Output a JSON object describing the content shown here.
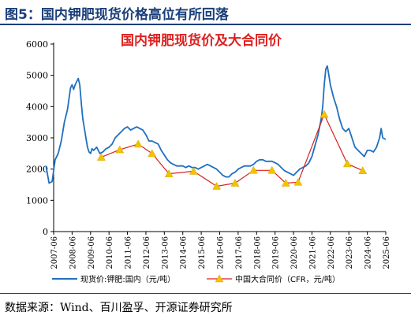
{
  "figure": {
    "title": "图5：国内钾肥现货价格高位有所回落",
    "source": "数据来源：Wind、百川盈孚、开源证券研究所"
  },
  "chart_data": {
    "type": "line",
    "title": "国内钾肥现货价及大合同价",
    "ylim": [
      0,
      6000
    ],
    "yticks": [
      0,
      1000,
      2000,
      3000,
      4000,
      5000,
      6000
    ],
    "xticks": [
      "2007-06",
      "2008-06",
      "2009-06",
      "2010-06",
      "2011-06",
      "2012-06",
      "2013-06",
      "2014-06",
      "2015-06",
      "2016-06",
      "2017-06",
      "2018-06",
      "2019-06",
      "2020-06",
      "2021-06",
      "2022-06",
      "2023-06",
      "2024-06",
      "2025-06"
    ],
    "grid": false,
    "legend_position": "bottom",
    "colors": {
      "spot": "#1f6fc0",
      "contract_line": "#d6201f",
      "contract_marker": "#f2c300"
    },
    "series": [
      {
        "name": "现货价:钾肥:国内（元/吨）",
        "kind": "line",
        "x": [
          "2007-01",
          "2007-03",
          "2007-05",
          "2007-07",
          "2007-09",
          "2007-11",
          "2008-01",
          "2008-03",
          "2008-05",
          "2008-06",
          "2008-07",
          "2008-08",
          "2008-09",
          "2008-10",
          "2008-11",
          "2008-12",
          "2009-01",
          "2009-02",
          "2009-03",
          "2009-04",
          "2009-05",
          "2009-06",
          "2009-07",
          "2009-08",
          "2009-10",
          "2009-12",
          "2010-02",
          "2010-04",
          "2010-06",
          "2010-08",
          "2010-10",
          "2010-12",
          "2011-02",
          "2011-04",
          "2011-06",
          "2011-08",
          "2011-10",
          "2011-12",
          "2012-02",
          "2012-04",
          "2012-06",
          "2012-08",
          "2012-10",
          "2012-12",
          "2013-02",
          "2013-04",
          "2013-06",
          "2013-08",
          "2013-10",
          "2013-12",
          "2014-02",
          "2014-04",
          "2014-06",
          "2014-08",
          "2014-10",
          "2014-12",
          "2015-02",
          "2015-04",
          "2015-06",
          "2015-08",
          "2015-10",
          "2015-12",
          "2016-02",
          "2016-04",
          "2016-06",
          "2016-08",
          "2016-10",
          "2016-12",
          "2017-02",
          "2017-04",
          "2017-06",
          "2017-08",
          "2017-10",
          "2017-12",
          "2018-02",
          "2018-04",
          "2018-06",
          "2018-08",
          "2018-10",
          "2018-12",
          "2019-02",
          "2019-04",
          "2019-06",
          "2019-08",
          "2019-10",
          "2019-12",
          "2020-02",
          "2020-04",
          "2020-06",
          "2020-08",
          "2020-10",
          "2020-12",
          "2021-02",
          "2021-04",
          "2021-06",
          "2021-08",
          "2021-10",
          "2021-12",
          "2022-01",
          "2022-02",
          "2022-03",
          "2022-04",
          "2022-05",
          "2022-06",
          "2022-08",
          "2022-10",
          "2022-12",
          "2023-02",
          "2023-04",
          "2023-06",
          "2023-08",
          "2023-10",
          "2023-12",
          "2024-02",
          "2024-04",
          "2024-06",
          "2024-08",
          "2024-10",
          "2024-12",
          "2025-02",
          "2025-03",
          "2025-04",
          "2025-06"
        ],
        "values": [
          2100,
          1550,
          1600,
          2300,
          2500,
          2900,
          3500,
          3900,
          4600,
          4700,
          4550,
          4700,
          4800,
          4900,
          4700,
          4100,
          3600,
          3300,
          3000,
          2700,
          2550,
          2500,
          2650,
          2600,
          2700,
          2500,
          2550,
          2650,
          2700,
          2800,
          3000,
          3100,
          3200,
          3300,
          3350,
          3250,
          3300,
          3350,
          3300,
          3250,
          3100,
          2900,
          2900,
          2850,
          2800,
          2600,
          2450,
          2300,
          2200,
          2150,
          2100,
          2100,
          2100,
          2050,
          2100,
          2050,
          2050,
          2000,
          2050,
          2100,
          2150,
          2100,
          2050,
          2000,
          1900,
          1800,
          1750,
          1750,
          1850,
          1900,
          2000,
          2050,
          2100,
          2100,
          2100,
          2150,
          2250,
          2300,
          2300,
          2250,
          2250,
          2250,
          2200,
          2150,
          2050,
          1950,
          1900,
          1850,
          1800,
          1900,
          2000,
          2050,
          2100,
          2200,
          2400,
          2750,
          3100,
          3600,
          4000,
          4700,
          5200,
          5300,
          5000,
          4700,
          4300,
          4000,
          3600,
          3300,
          3200,
          3300,
          3000,
          2700,
          2600,
          2500,
          2400,
          2600,
          2600,
          2550,
          2700,
          3000,
          3300,
          3000,
          2950
        ]
      },
      {
        "name": "中国大合同价（CFR，元/吨）",
        "kind": "line-marker",
        "x": [
          "2010-01",
          "2011-01",
          "2012-01",
          "2012-10",
          "2013-09",
          "2015-01",
          "2016-04",
          "2017-04",
          "2018-04",
          "2019-04",
          "2020-01",
          "2020-09",
          "2022-02",
          "2023-05",
          "2024-03"
        ],
        "values": [
          2380,
          2620,
          2800,
          2500,
          1850,
          1930,
          1450,
          1550,
          1960,
          1960,
          1550,
          1580,
          3750,
          2170,
          1950
        ]
      }
    ]
  }
}
